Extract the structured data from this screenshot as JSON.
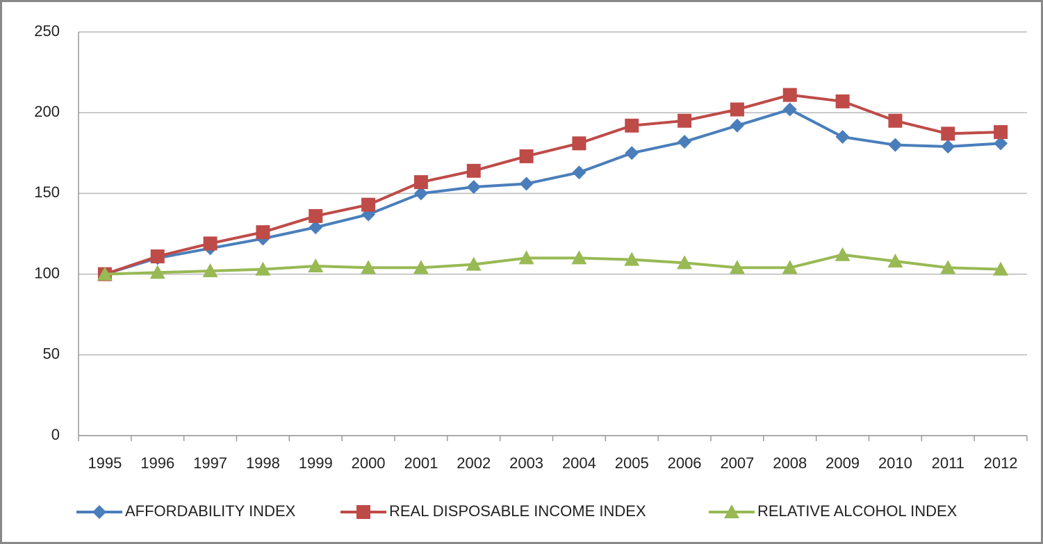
{
  "chart_data": {
    "type": "line",
    "categories": [
      "1995",
      "1996",
      "1997",
      "1998",
      "1999",
      "2000",
      "2001",
      "2002",
      "2003",
      "2004",
      "2005",
      "2006",
      "2007",
      "2008",
      "2009",
      "2010",
      "2011",
      "2012"
    ],
    "series": [
      {
        "name": "AFFORDABILITY INDEX",
        "color": "#4a7ebb",
        "marker": "diamond",
        "values": [
          100,
          110,
          116,
          122,
          129,
          137,
          150,
          154,
          156,
          163,
          175,
          182,
          192,
          202,
          185,
          180,
          179,
          181
        ]
      },
      {
        "name": "REAL DISPOSABLE INCOME INDEX",
        "color": "#be4b48",
        "marker": "square",
        "values": [
          100,
          111,
          119,
          126,
          136,
          143,
          157,
          164,
          173,
          181,
          192,
          195,
          202,
          211,
          207,
          195,
          187,
          188
        ]
      },
      {
        "name": "RELATIVE ALCOHOL INDEX",
        "color": "#98b954",
        "marker": "triangle",
        "values": [
          100,
          101,
          102,
          103,
          105,
          104,
          104,
          106,
          110,
          110,
          109,
          107,
          104,
          104,
          112,
          108,
          104,
          103
        ]
      }
    ],
    "ylim": [
      0,
      250
    ],
    "yticks": [
      0,
      50,
      100,
      150,
      200,
      250
    ],
    "grid": true,
    "legend": "bottom"
  }
}
